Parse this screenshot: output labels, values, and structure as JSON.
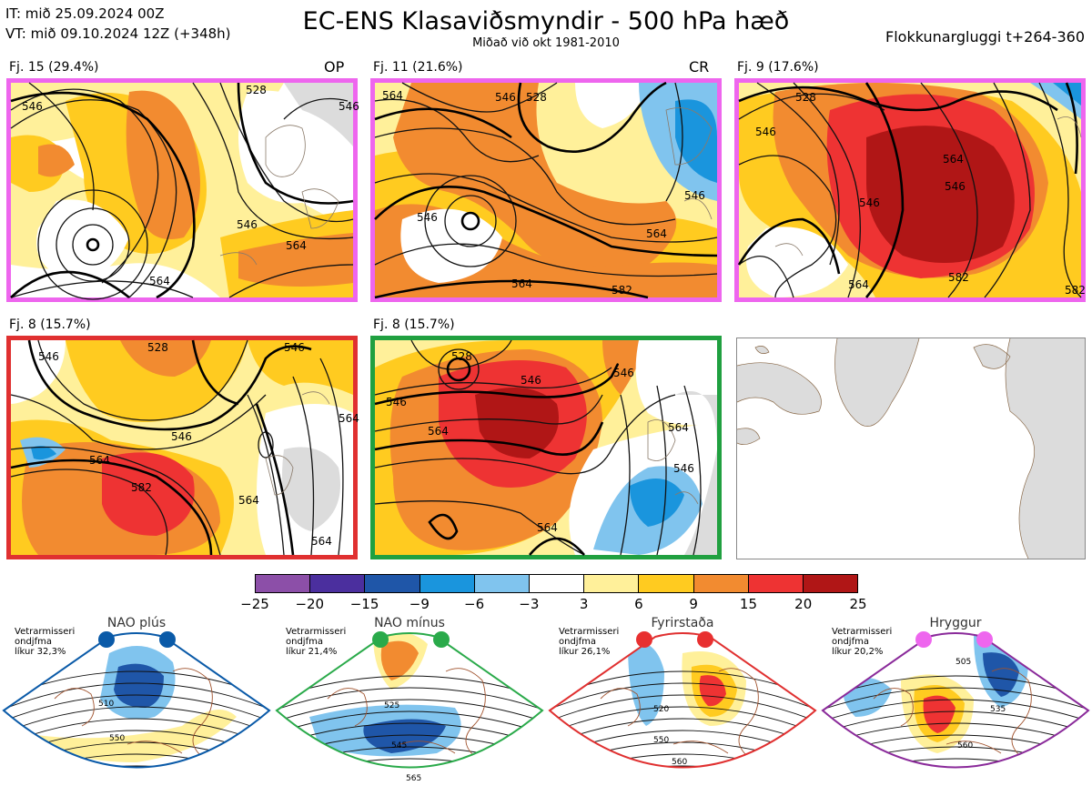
{
  "header": {
    "issue_time": "IT: mið 25.09.2024 00Z",
    "valid_time": "VT: mið 09.10.2024 12Z  (+348h)",
    "title": "EC-ENS Klasaviðsmyndir - 500 hPa hæð",
    "subtitle": "Miðað við okt 1981-2010",
    "window": "Flokkunargluggi t+264-360"
  },
  "panels": [
    {
      "label": "Fj. 15 (29.4%)",
      "tag": "OP",
      "border": "#ee66ee",
      "contour_labels": [
        "546",
        "528",
        "546",
        "564",
        "564",
        "546"
      ]
    },
    {
      "label": "Fj. 11 (21.6%)",
      "tag": "CR",
      "border": "#ee66ee",
      "contour_labels": [
        "564",
        "546",
        "528",
        "546",
        "564",
        "564",
        "582",
        "546"
      ]
    },
    {
      "label": "Fj. 9 (17.6%)",
      "tag": "",
      "border": "#ee66ee",
      "contour_labels": [
        "546",
        "528",
        "546",
        "564",
        "546",
        "564",
        "582",
        "582"
      ]
    },
    {
      "label": "Fj. 8 (15.7%)",
      "tag": "",
      "border": "#e03030",
      "contour_labels": [
        "546",
        "528",
        "546",
        "546",
        "564",
        "564",
        "582",
        "564",
        "564"
      ]
    },
    {
      "label": "Fj. 8 (15.7%)",
      "tag": "",
      "border": "#20a040",
      "contour_labels": [
        "528",
        "546",
        "546",
        "564",
        "546",
        "546",
        "564",
        "564"
      ]
    }
  ],
  "colorbar": {
    "ticks": [
      "−25",
      "−20",
      "−15",
      "−9",
      "−6",
      "−3",
      "3",
      "6",
      "9",
      "15",
      "20",
      "25"
    ],
    "colors": [
      "#8c4fa8",
      "#4b2f9e",
      "#1f56a8",
      "#1a95dd",
      "#80c4ee",
      "#ffffff",
      "#fff09a",
      "#ffcb20",
      "#f28b30",
      "#ee3333",
      "#b01616"
    ]
  },
  "regimes": [
    {
      "name": "NAO plús",
      "note_line1": "Vetrarmisseri",
      "note_line2": "ondjfma",
      "note_line3": "líkur 32,3%",
      "color": "#0a5aa8",
      "dot_color": "#0a5aa8",
      "contour_labels": [
        "510",
        "550"
      ]
    },
    {
      "name": "NAO mínus",
      "note_line1": "Vetrarmisseri",
      "note_line2": "ondjfma",
      "note_line3": "líkur 21,4%",
      "color": "#2aaa4a",
      "dot_color": "#2aaa4a",
      "contour_labels": [
        "525",
        "545",
        "565"
      ]
    },
    {
      "name": "Fyrirstaða",
      "note_line1": "Vetrarmisseri",
      "note_line2": "ondjfma",
      "note_line3": "líkur 26,1%",
      "color": "#e03030",
      "dot_color": "#e83030",
      "contour_labels": [
        "520",
        "550",
        "560"
      ]
    },
    {
      "name": "Hryggur",
      "note_line1": "Vetrarmisseri",
      "note_line2": "ondjfma",
      "note_line3": "líkur 20,2%",
      "color": "#8a2a9a",
      "dot_color": "#ee66ee",
      "contour_labels": [
        "505",
        "535",
        "560"
      ]
    }
  ]
}
